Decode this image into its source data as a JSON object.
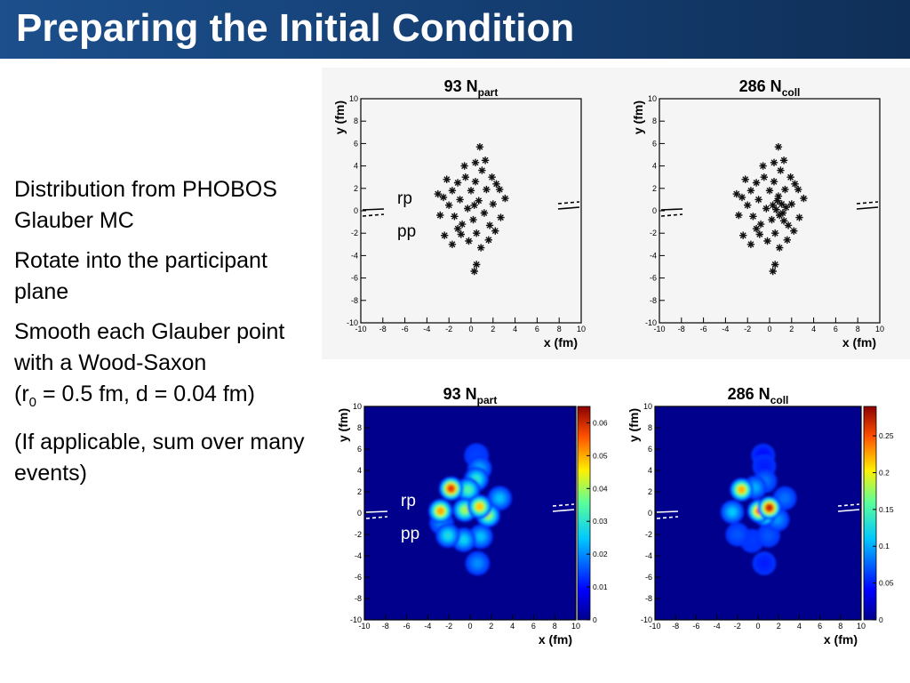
{
  "slide": {
    "title": "Preparing the Initial Condition",
    "bullets": [
      "Distribution from PHOBOS Glauber MC",
      "Rotate into the participant plane",
      "Smooth each Glauber point with a Wood-Saxon",
      "(If applicable, sum over many events)"
    ],
    "bullet3_tail": {
      "pre": "(r",
      "sub": "0",
      "post": " = 0.5 fm, d = 0.04 fm)"
    }
  },
  "colors": {
    "title_bar": "#16447d",
    "heatmap_bg": "#00008c"
  },
  "chart_data": [
    {
      "type": "scatter",
      "title": "93 N",
      "title_sub": "part",
      "xlabel": "x (fm)",
      "ylabel": "y (fm)",
      "xlim": [
        -10,
        10
      ],
      "ylim": [
        -10,
        10
      ],
      "tick_labels": [
        "-10",
        "-8",
        "-6",
        "-4",
        "-2",
        "0",
        "2",
        "4",
        "6",
        "8",
        "10"
      ],
      "annotations": [
        "rp",
        "pp"
      ],
      "points": [
        [
          -2.5,
          1.2
        ],
        [
          -2,
          0.5
        ],
        [
          -1.7,
          1.8
        ],
        [
          -1.5,
          -0.5
        ],
        [
          -1.2,
          2.5
        ],
        [
          -1,
          1
        ],
        [
          -0.8,
          -1.2
        ],
        [
          -0.5,
          3
        ],
        [
          -0.3,
          0.2
        ],
        [
          0,
          1.8
        ],
        [
          0.2,
          -0.8
        ],
        [
          0.4,
          2.6
        ],
        [
          0.5,
          -2
        ],
        [
          0.7,
          0.9
        ],
        [
          1,
          3.6
        ],
        [
          1.2,
          -0.2
        ],
        [
          1.4,
          1.9
        ],
        [
          1.7,
          -1.3
        ],
        [
          2,
          0.6
        ],
        [
          2.3,
          2.4
        ],
        [
          2.7,
          -0.6
        ],
        [
          3.1,
          1.1
        ],
        [
          0.8,
          5.7
        ],
        [
          0.4,
          4.3
        ],
        [
          -0.6,
          4
        ],
        [
          0.3,
          -5.4
        ],
        [
          0.5,
          -4.8
        ],
        [
          -2.4,
          -2.2
        ],
        [
          -1.7,
          -3
        ],
        [
          -0.2,
          -2.7
        ],
        [
          0.9,
          -3.3
        ],
        [
          1.6,
          -2.6
        ],
        [
          -2.8,
          -0.4
        ],
        [
          -2.2,
          2.8
        ],
        [
          1.9,
          3
        ],
        [
          2.6,
          1.9
        ],
        [
          -0.9,
          -2.1
        ],
        [
          0.3,
          0.5
        ],
        [
          -1.2,
          -1.6
        ],
        [
          1.3,
          4.5
        ],
        [
          -3,
          1.5
        ],
        [
          2.2,
          -1.8
        ]
      ]
    },
    {
      "type": "scatter",
      "title": "286 N",
      "title_sub": "coll",
      "xlabel": "x (fm)",
      "ylabel": "y (fm)",
      "xlim": [
        -10,
        10
      ],
      "ylim": [
        -10,
        10
      ],
      "tick_labels": [
        "-10",
        "-8",
        "-6",
        "-4",
        "-2",
        "0",
        "2",
        "4",
        "6",
        "8",
        "10"
      ],
      "points": [
        [
          -2.5,
          1.2
        ],
        [
          -2,
          0.5
        ],
        [
          -1.7,
          1.8
        ],
        [
          -1.5,
          -0.5
        ],
        [
          -1.2,
          2.5
        ],
        [
          -1,
          1
        ],
        [
          -0.8,
          -1.2
        ],
        [
          -0.5,
          3
        ],
        [
          -0.3,
          0.2
        ],
        [
          0,
          1.8
        ],
        [
          0.2,
          -0.8
        ],
        [
          0.4,
          2.6
        ],
        [
          0.5,
          -2
        ],
        [
          0.7,
          0.9
        ],
        [
          1,
          3.6
        ],
        [
          1.2,
          -0.2
        ],
        [
          1.4,
          1.9
        ],
        [
          1.7,
          -1.3
        ],
        [
          2,
          0.6
        ],
        [
          2.3,
          2.4
        ],
        [
          2.7,
          -0.6
        ],
        [
          3.1,
          1.1
        ],
        [
          0.8,
          5.7
        ],
        [
          0.4,
          4.3
        ],
        [
          -0.6,
          4
        ],
        [
          0.3,
          -5.4
        ],
        [
          0.5,
          -4.8
        ],
        [
          -2.4,
          -2.2
        ],
        [
          -1.7,
          -3
        ],
        [
          -0.2,
          -2.7
        ],
        [
          0.9,
          -3.3
        ],
        [
          1.6,
          -2.6
        ],
        [
          -2.8,
          -0.4
        ],
        [
          -2.2,
          2.8
        ],
        [
          1.9,
          3
        ],
        [
          2.6,
          1.9
        ],
        [
          -0.9,
          -2.1
        ],
        [
          0.3,
          0.5
        ],
        [
          -1.2,
          -1.6
        ],
        [
          1.3,
          4.5
        ],
        [
          -3,
          1.5
        ],
        [
          2.2,
          -1.8
        ],
        [
          0.6,
          0.1
        ],
        [
          1.1,
          0.6
        ],
        [
          0.9,
          -0.4
        ],
        [
          1.5,
          0.3
        ],
        [
          0.8,
          1.3
        ],
        [
          1.3,
          -0.9
        ]
      ]
    },
    {
      "type": "heatmap",
      "title": "93 N",
      "title_sub": "part",
      "xlabel": "x (fm)",
      "ylabel": "y (fm)",
      "xlim": [
        -10,
        10
      ],
      "ylim": [
        -10,
        10
      ],
      "tick_labels": [
        "-10",
        "-8",
        "-6",
        "-4",
        "-2",
        "0",
        "2",
        "4",
        "6",
        "8",
        "10"
      ],
      "colorbar_ticks": [
        "0",
        "0.01",
        "0.02",
        "0.03",
        "0.04",
        "0.05",
        "0.06"
      ],
      "colorbar_values": [
        0,
        0.01,
        0.02,
        0.03,
        0.04,
        0.05,
        0.06
      ],
      "zlim": [
        0,
        0.065
      ],
      "annotations": [
        "rp",
        "pp"
      ],
      "blobs": [
        [
          -1.8,
          2.3,
          0.058
        ],
        [
          -2.8,
          0.2,
          0.05
        ],
        [
          -0.5,
          0.3,
          0.04
        ],
        [
          0.9,
          0.6,
          0.048
        ],
        [
          1.7,
          -0.2,
          0.04
        ],
        [
          -0.2,
          2.2,
          0.034
        ],
        [
          0.6,
          3.2,
          0.03
        ],
        [
          0.9,
          4.2,
          0.022
        ],
        [
          0.6,
          5.4,
          0.014
        ],
        [
          -2.1,
          -2.1,
          0.028
        ],
        [
          -0.6,
          -2.5,
          0.026
        ],
        [
          1,
          -2.2,
          0.024
        ],
        [
          0.7,
          -4.7,
          0.02
        ],
        [
          2.8,
          1.4,
          0.024
        ],
        [
          -2.7,
          -0.9,
          0.02
        ]
      ]
    },
    {
      "type": "heatmap",
      "title": "286 N",
      "title_sub": "coll",
      "xlabel": "x (fm)",
      "ylabel": "y (fm)",
      "xlim": [
        -10,
        10
      ],
      "ylim": [
        -10,
        10
      ],
      "tick_labels": [
        "-10",
        "-8",
        "-6",
        "-4",
        "-2",
        "0",
        "2",
        "4",
        "6",
        "8",
        "10"
      ],
      "colorbar_ticks": [
        "0",
        "0.05",
        "0.1",
        "0.15",
        "0.2",
        "0.25"
      ],
      "colorbar_values": [
        0,
        0.05,
        0.1,
        0.15,
        0.2,
        0.25
      ],
      "zlim": [
        0,
        0.29
      ],
      "blobs": [
        [
          -1.6,
          2.2,
          0.22
        ],
        [
          0.1,
          0.2,
          0.24
        ],
        [
          1.1,
          0.5,
          0.27
        ],
        [
          0.6,
          -0.1,
          0.2
        ],
        [
          -2.5,
          0.1,
          0.11
        ],
        [
          -0.3,
          2.4,
          0.1
        ],
        [
          0.7,
          3,
          0.08
        ],
        [
          0.6,
          4.4,
          0.05
        ],
        [
          0.5,
          5.4,
          0.04
        ],
        [
          -2,
          -2,
          0.07
        ],
        [
          -0.6,
          -2.6,
          0.06
        ],
        [
          1,
          -2.1,
          0.07
        ],
        [
          0.6,
          -4.7,
          0.05
        ],
        [
          2.6,
          1.4,
          0.08
        ],
        [
          1.9,
          -0.6,
          0.09
        ]
      ]
    }
  ]
}
